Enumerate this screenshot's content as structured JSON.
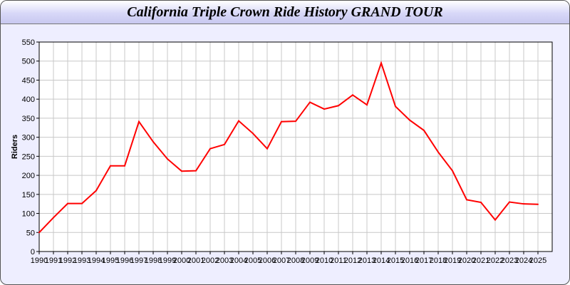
{
  "chart_data": {
    "type": "line",
    "title": "California Triple Crown Ride History GRAND TOUR",
    "xlabel": "",
    "ylabel": "Riders",
    "ylim": [
      0,
      550
    ],
    "yticks": [
      0,
      50,
      100,
      150,
      200,
      250,
      300,
      350,
      400,
      450,
      500,
      550
    ],
    "grid": true,
    "x": [
      "1990",
      "1991",
      "1992",
      "1993",
      "1994",
      "1995",
      "1996",
      "1997",
      "1998",
      "1999",
      "2000",
      "2001",
      "2002",
      "2003",
      "2004",
      "2005",
      "2006",
      "2007",
      "2008",
      "2009",
      "2010",
      "2011",
      "2012",
      "2013",
      "2014",
      "2015",
      "2016",
      "2017",
      "2018",
      "2019",
      "2020",
      "2021",
      "2022",
      "2023",
      "2024",
      "2025"
    ],
    "series": [
      {
        "color": "#ff0000",
        "values": [
          50,
          89,
          126,
          126,
          160,
          225,
          225,
          341,
          288,
          243,
          211,
          212,
          270,
          281,
          343,
          310,
          270,
          341,
          342,
          392,
          374,
          383,
          411,
          385,
          495,
          381,
          345,
          318,
          261,
          212,
          136,
          129,
          83,
          130,
          125,
          124
        ]
      }
    ]
  }
}
